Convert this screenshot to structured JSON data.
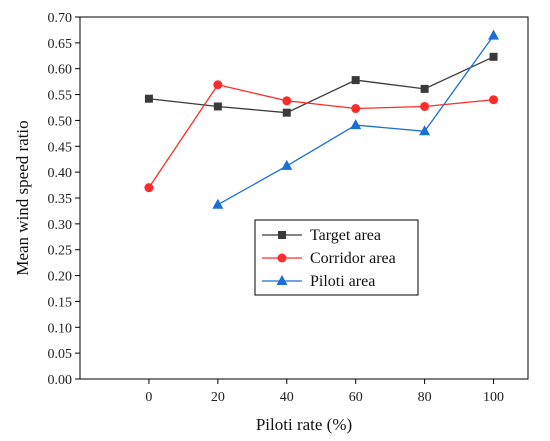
{
  "chart_data": {
    "type": "line",
    "xlabel": "Piloti rate (%)",
    "ylabel": "Mean wind speed ratio",
    "xlim": [
      -20,
      110
    ],
    "ylim": [
      0,
      0.7
    ],
    "x_ticks": [
      0,
      20,
      40,
      60,
      80,
      100
    ],
    "y_ticks": [
      0.0,
      0.05,
      0.1,
      0.15,
      0.2,
      0.25,
      0.3,
      0.35,
      0.4,
      0.45,
      0.5,
      0.55,
      0.6,
      0.65,
      0.7
    ],
    "grid": false,
    "legend_position": "center",
    "series": [
      {
        "name": "Target area",
        "color": "#3a3a3a",
        "marker": "square",
        "x": [
          0,
          20,
          40,
          60,
          80,
          100
        ],
        "values": [
          0.542,
          0.527,
          0.515,
          0.578,
          0.561,
          0.623
        ]
      },
      {
        "name": "Corridor area",
        "color": "#ff2a2a",
        "marker": "circle",
        "x": [
          0,
          20,
          40,
          60,
          80,
          100
        ],
        "values": [
          0.37,
          0.569,
          0.538,
          0.523,
          0.527,
          0.54
        ]
      },
      {
        "name": "Piloti area",
        "color": "#1a6fd6",
        "marker": "triangle",
        "x": [
          20,
          40,
          60,
          80,
          100
        ],
        "values": [
          0.337,
          0.412,
          0.491,
          0.479,
          0.664
        ]
      }
    ]
  }
}
